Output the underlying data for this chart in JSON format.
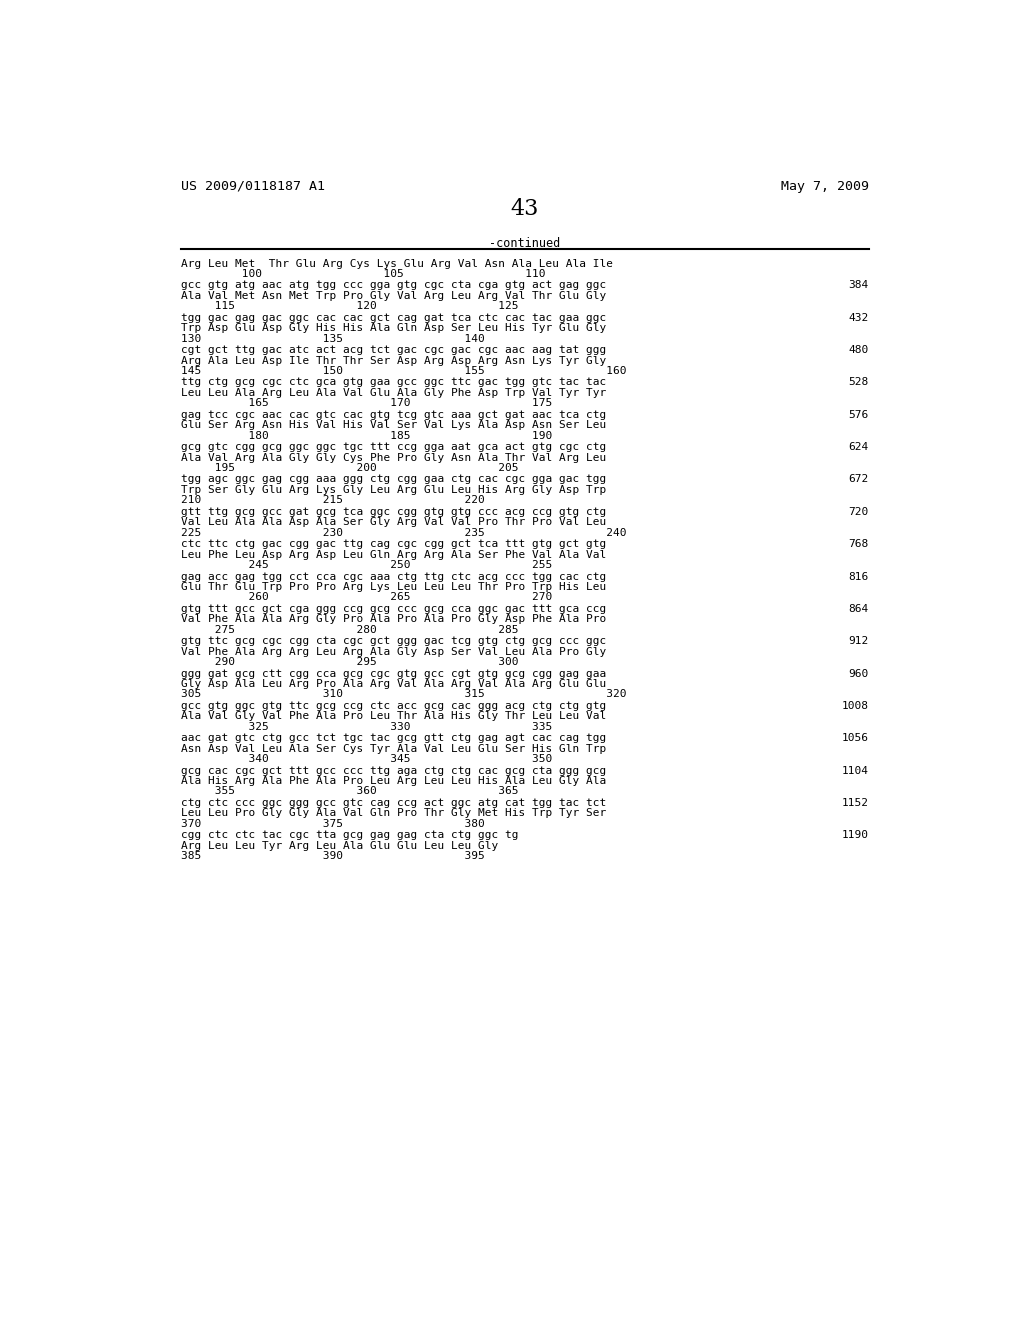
{
  "header_left": "US 2009/0118187 A1",
  "header_right": "May 7, 2009",
  "page_number": "43",
  "continued_label": "-continued",
  "background_color": "#ffffff",
  "text_color": "#000000",
  "intro_aa": "Arg Leu Met  Thr Glu Arg Cys Lys Glu Arg Val Asn Ala Leu Ala Ile",
  "intro_nums": "         100                  105                  110",
  "sequence_blocks": [
    {
      "dna": "gcc gtg atg aac atg tgg ccc gga gtg cgc cta cga gtg act gag ggc",
      "aa": "Ala Val Met Asn Met Trp Pro Gly Val Arg Leu Arg Val Thr Glu Gly",
      "nums": "     115                  120                  125",
      "linenum": "384"
    },
    {
      "dna": "tgg gac gag gac ggc cac cac gct cag gat tca ctc cac tac gaa ggc",
      "aa": "Trp Asp Glu Asp Gly His His Ala Gln Asp Ser Leu His Tyr Glu Gly",
      "nums": "130                  135                  140",
      "linenum": "432"
    },
    {
      "dna": "cgt gct ttg gac atc act acg tct gac cgc gac cgc aac aag tat ggg",
      "aa": "Arg Ala Leu Asp Ile Thr Thr Ser Asp Arg Asp Arg Asn Lys Tyr Gly",
      "nums": "145                  150                  155                  160",
      "linenum": "480"
    },
    {
      "dna": "ttg ctg gcg cgc ctc gca gtg gaa gcc ggc ttc gac tgg gtc tac tac",
      "aa": "Leu Leu Ala Arg Leu Ala Val Glu Ala Gly Phe Asp Trp Val Tyr Tyr",
      "nums": "          165                  170                  175",
      "linenum": "528"
    },
    {
      "dna": "gag tcc cgc aac cac gtc cac gtg tcg gtc aaa gct gat aac tca ctg",
      "aa": "Glu Ser Arg Asn His Val His Val Ser Val Lys Ala Asp Asn Ser Leu",
      "nums": "          180                  185                  190",
      "linenum": "576"
    },
    {
      "dna": "gcg gtc cgg gcg ggc ggc tgc ttt ccg gga aat gca act gtg cgc ctg",
      "aa": "Ala Val Arg Ala Gly Gly Cys Phe Pro Gly Asn Ala Thr Val Arg Leu",
      "nums": "     195                  200                  205",
      "linenum": "624"
    },
    {
      "dna": "tgg agc ggc gag cgg aaa ggg ctg cgg gaa ctg cac cgc gga gac tgg",
      "aa": "Trp Ser Gly Glu Arg Lys Gly Leu Arg Glu Leu His Arg Gly Asp Trp",
      "nums": "210                  215                  220",
      "linenum": "672"
    },
    {
      "dna": "gtt ttg gcg gcc gat gcg tca ggc cgg gtg gtg ccc acg ccg gtg ctg",
      "aa": "Val Leu Ala Ala Asp Ala Ser Gly Arg Val Val Pro Thr Pro Val Leu",
      "nums": "225                  230                  235                  240",
      "linenum": "720"
    },
    {
      "dna": "ctc ttc ctg gac cgg gac ttg cag cgc cgg gct tca ttt gtg gct gtg",
      "aa": "Leu Phe Leu Asp Arg Asp Leu Gln Arg Arg Ala Ser Phe Val Ala Val",
      "nums": "          245                  250                  255",
      "linenum": "768"
    },
    {
      "dna": "gag acc gag tgg cct cca cgc aaa ctg ttg ctc acg ccc tgg cac ctg",
      "aa": "Glu Thr Glu Trp Pro Pro Arg Lys Leu Leu Leu Thr Pro Trp His Leu",
      "nums": "          260                  265                  270",
      "linenum": "816"
    },
    {
      "dna": "gtg ttt gcc gct cga ggg ccg gcg ccc gcg cca ggc gac ttt gca ccg",
      "aa": "Val Phe Ala Ala Arg Gly Pro Ala Pro Ala Pro Gly Asp Phe Ala Pro",
      "nums": "     275                  280                  285",
      "linenum": "864"
    },
    {
      "dna": "gtg ttc gcg cgc cgg cta cgc gct ggg gac tcg gtg ctg gcg ccc ggc",
      "aa": "Val Phe Ala Arg Arg Leu Arg Ala Gly Asp Ser Val Leu Ala Pro Gly",
      "nums": "     290                  295                  300",
      "linenum": "912"
    },
    {
      "dna": "ggg gat gcg ctt cgg cca gcg cgc gtg gcc cgt gtg gcg cgg gag gaa",
      "aa": "Gly Asp Ala Leu Arg Pro Ala Arg Val Ala Arg Val Ala Arg Glu Glu",
      "nums": "305                  310                  315                  320",
      "linenum": "960"
    },
    {
      "dna": "gcc gtg ggc gtg ttc gcg ccg ctc acc gcg cac ggg acg ctg ctg gtg",
      "aa": "Ala Val Gly Val Phe Ala Pro Leu Thr Ala His Gly Thr Leu Leu Val",
      "nums": "          325                  330                  335",
      "linenum": "1008"
    },
    {
      "dna": "aac gat gtc ctg gcc tct tgc tac gcg gtt ctg gag agt cac cag tgg",
      "aa": "Asn Asp Val Leu Ala Ser Cys Tyr Ala Val Leu Glu Ser His Gln Trp",
      "nums": "          340                  345                  350",
      "linenum": "1056"
    },
    {
      "dna": "gcg cac cgc gct ttt gcc ccc ttg aga ctg ctg cac gcg cta ggg gcg",
      "aa": "Ala His Arg Ala Phe Ala Pro Leu Arg Leu Leu His Ala Leu Gly Ala",
      "nums": "     355                  360                  365",
      "linenum": "1104"
    },
    {
      "dna": "ctg ctc ccc ggc ggg gcc gtc cag ccg act ggc atg cat tgg tac tct",
      "aa": "Leu Leu Pro Gly Gly Ala Val Gln Pro Thr Gly Met His Trp Tyr Ser",
      "nums": "370                  375                  380",
      "linenum": "1152"
    },
    {
      "dna": "cgg ctc ctc tac cgc tta gcg gag gag cta ctg ggc tg",
      "aa": "Arg Leu Leu Tyr Arg Leu Ala Glu Glu Leu Leu Gly",
      "nums": "385                  390                  395",
      "linenum": "1190"
    }
  ]
}
